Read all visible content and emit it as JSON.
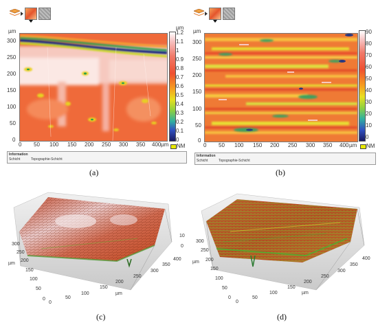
{
  "panels": {
    "a": {
      "caption": "(a)",
      "unit_label": "µm",
      "colorbar_unit": "µm",
      "x_ticks": [
        "0",
        "50",
        "100",
        "150",
        "200",
        "250",
        "300",
        "350",
        "400"
      ],
      "y_ticks": [
        "0",
        "50",
        "100",
        "150",
        "200",
        "250",
        "300"
      ],
      "colorbar_ticks": [
        "1.2",
        "1.1",
        "1",
        "0.9",
        "0.8",
        "0.7",
        "0.6",
        "0.5",
        "0.4",
        "0.3",
        "0.2",
        "0.1",
        "0"
      ],
      "nm_label": "NM",
      "info_title": "Information",
      "info_col1": "Schicht",
      "info_col2": "Topographie-Schicht"
    },
    "b": {
      "caption": "(b)",
      "unit_label": "µm",
      "colorbar_ticks": [
        "90",
        "80",
        "70",
        "60",
        "50",
        "40",
        "30",
        "20",
        "10",
        "0"
      ],
      "nm_label": "NM",
      "x_ticks": [
        "0",
        "50",
        "100",
        "150",
        "200",
        "250",
        "300",
        "350",
        "400"
      ],
      "y_ticks": [
        "0",
        "50",
        "100",
        "150",
        "200",
        "250",
        "300"
      ],
      "info_title": "Information",
      "info_col1": "Schicht",
      "info_col2": "Topographie-Schicht"
    },
    "c": {
      "caption": "(c)",
      "unit_label": "µm",
      "y_ticks": [
        "300",
        "250",
        "200",
        "150",
        "100",
        "50",
        "0"
      ],
      "x_ticks": [
        "0",
        "50",
        "100",
        "150",
        "200",
        "250",
        "300",
        "350",
        "400"
      ],
      "z_ticks": [
        "0",
        "10"
      ]
    },
    "d": {
      "caption": "(d)",
      "unit_label": "µm",
      "y_ticks": [
        "300",
        "250",
        "200",
        "150",
        "100",
        "50",
        "0"
      ],
      "x_ticks": [
        "0",
        "50",
        "100",
        "150",
        "200",
        "250",
        "300",
        "350",
        "400"
      ]
    }
  },
  "toolbar_icons": [
    "layers-icon",
    "arrow-icon",
    "color-thumb-icon",
    "gray-thumb-icon"
  ]
}
